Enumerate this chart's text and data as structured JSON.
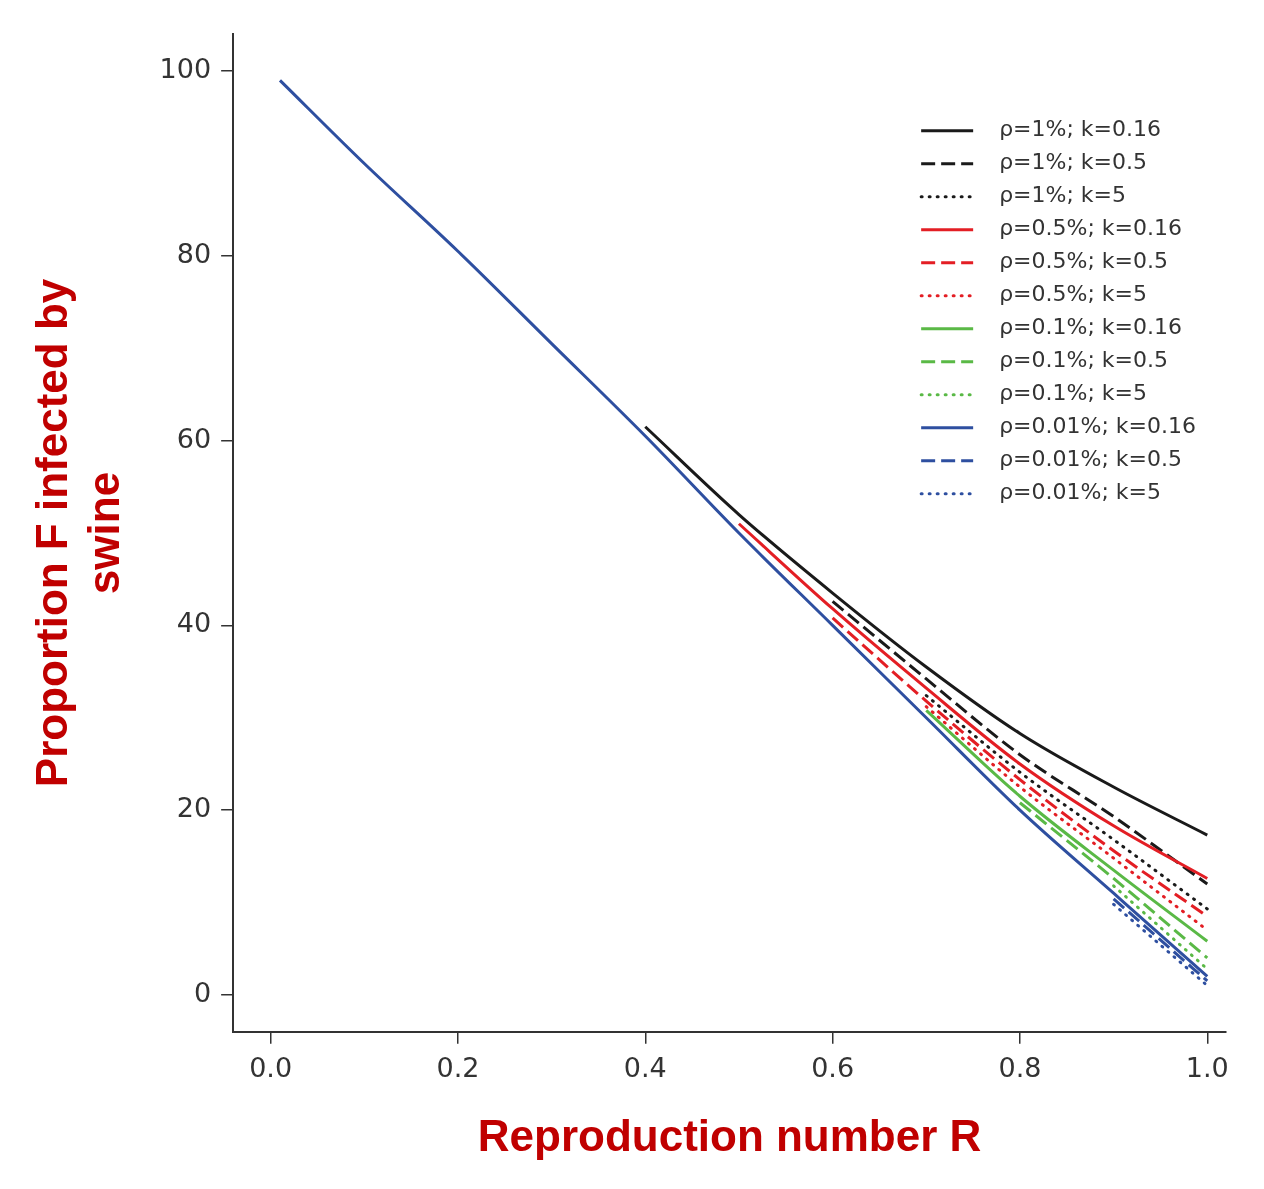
{
  "chart_data": {
    "type": "line",
    "xlabel": "Reproduction number R",
    "ylabel": "Proportion F infected by swine",
    "x": [
      0.01,
      0.1,
      0.2,
      0.3,
      0.4,
      0.5,
      0.6,
      0.7,
      0.8,
      0.9,
      1.0
    ],
    "xlim": [
      -0.04,
      1.02
    ],
    "ylim": [
      -4,
      104
    ],
    "xticks": [
      {
        "value": 0,
        "label": "0.0"
      },
      0.2,
      0.4,
      0.6,
      0.8,
      {
        "value": 1,
        "label": "1.0"
      }
    ],
    "yticks": [
      0,
      20,
      40,
      60,
      80,
      100
    ],
    "grid": false,
    "legend": "top right",
    "marker": "none",
    "series": [
      {
        "name": "ρ=1%; k=0.16",
        "color": "#1a1a1a",
        "line_style": "solid",
        "values": [
          null,
          null,
          null,
          null,
          61.5,
          52,
          43.5,
          35.5,
          28.3,
          22.5,
          17.3
        ]
      },
      {
        "name": "ρ=1%; k=0.5",
        "color": "#1a1a1a",
        "line_style": "dashed",
        "values": [
          null,
          null,
          null,
          null,
          null,
          null,
          42.6,
          34.2,
          26,
          19.3,
          12
        ]
      },
      {
        "name": "ρ=1%; k=5",
        "color": "#1a1a1a",
        "line_style": "dotted",
        "values": [
          null,
          null,
          null,
          null,
          null,
          null,
          null,
          32.4,
          24.1,
          16.8,
          9.3
        ]
      },
      {
        "name": "ρ=0.5%; k=0.16",
        "color": "#e31e24",
        "line_style": "solid",
        "values": [
          null,
          null,
          null,
          null,
          null,
          51,
          41.8,
          33.2,
          25,
          18.3,
          12.6
        ]
      },
      {
        "name": "ρ=0.5%; k=0.5",
        "color": "#e31e24",
        "line_style": "dashed",
        "values": [
          null,
          null,
          null,
          null,
          null,
          null,
          40.8,
          31.8,
          23.3,
          15.6,
          8.5
        ]
      },
      {
        "name": "ρ=0.5%; k=5",
        "color": "#e31e24",
        "line_style": "dotted",
        "values": [
          null,
          null,
          null,
          null,
          null,
          null,
          null,
          31.2,
          22.5,
          14.8,
          7
        ]
      },
      {
        "name": "ρ=0.1%; k=0.16",
        "color": "#5ab946",
        "line_style": "solid",
        "values": [
          null,
          null,
          null,
          null,
          null,
          null,
          null,
          30.8,
          21.5,
          13.5,
          5.8
        ]
      },
      {
        "name": "ρ=0.1%; k=0.5",
        "color": "#5ab946",
        "line_style": "dashed",
        "values": [
          null,
          null,
          null,
          null,
          null,
          null,
          null,
          null,
          20.8,
          12.6,
          4
        ]
      },
      {
        "name": "ρ=0.1%; k=5",
        "color": "#5ab946",
        "line_style": "dotted",
        "values": [
          null,
          null,
          null,
          null,
          null,
          null,
          null,
          null,
          null,
          11.8,
          2.8
        ]
      },
      {
        "name": "ρ=0.01%; k=0.16",
        "color": "#2e4fa0",
        "line_style": "solid",
        "values": [
          99,
          90,
          80.5,
          70.5,
          60.5,
          50,
          40,
          30,
          20,
          11,
          2
        ]
      },
      {
        "name": "ρ=0.01%; k=0.5",
        "color": "#2e4fa0",
        "line_style": "dashed",
        "values": [
          null,
          null,
          null,
          null,
          null,
          null,
          null,
          null,
          null,
          10.4,
          1.5
        ]
      },
      {
        "name": "ρ=0.01%; k=5",
        "color": "#2e4fa0",
        "line_style": "dotted",
        "values": [
          null,
          null,
          null,
          null,
          null,
          null,
          null,
          null,
          null,
          9.8,
          1
        ]
      }
    ]
  }
}
